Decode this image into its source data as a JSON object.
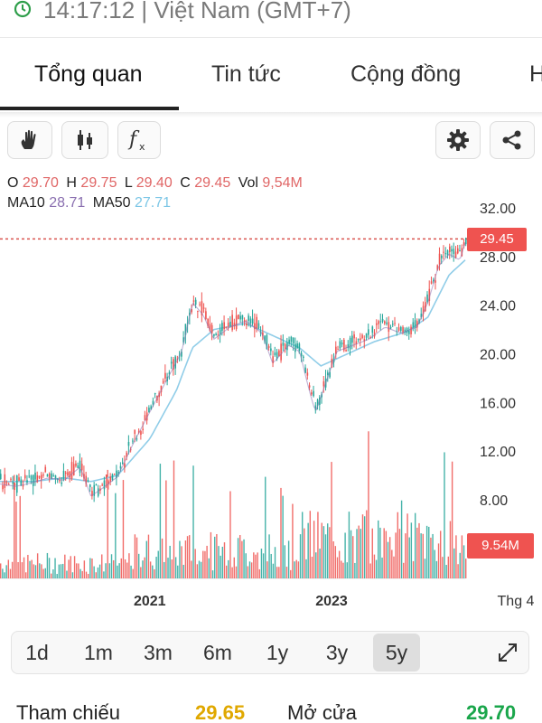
{
  "status_bar": {
    "time_text": "14:17:12 | Việt Nam (GMT+7)"
  },
  "tabs": [
    {
      "label": "Tổng quan",
      "active": true
    },
    {
      "label": "Tin tức",
      "active": false
    },
    {
      "label": "Cộng đồng",
      "active": false
    },
    {
      "label": "H",
      "active": false
    }
  ],
  "toolbar": {
    "icons": [
      "hand-icon",
      "candlestick-icon",
      "function-icon",
      "gear-icon",
      "share-icon"
    ]
  },
  "ohlc": {
    "o_label": "O",
    "o_value": "29.70",
    "h_label": "H",
    "h_value": "29.75",
    "l_label": "L",
    "l_value": "29.40",
    "c_label": "C",
    "c_value": "29.45",
    "vol_label": "Vol",
    "vol_value": "9,54M"
  },
  "ma": {
    "ma10_label": "MA10",
    "ma10_value": "28.71",
    "ma50_label": "MA50",
    "ma50_value": "27.71"
  },
  "chart_data": {
    "type": "line",
    "y_ticks": [
      "32.00",
      "28.00",
      "24.00",
      "20.00",
      "16.00",
      "12.00",
      "8.00"
    ],
    "x_ticks": [
      "2021",
      "2023",
      "Thg 4"
    ],
    "x_tick_t": [
      0.28,
      0.62,
      0.93
    ],
    "ylim": [
      8,
      32
    ],
    "current_price_label": "29.45",
    "current_price": 29.45,
    "current_volume_label": "9.54M",
    "colors": {
      "up": "#26a69a",
      "down": "#ef5350",
      "ma10": "#8a6fb0",
      "ma50": "#90cde8",
      "price_line": "#d9534f"
    },
    "price_points": [
      [
        0.0,
        9.6
      ],
      [
        0.03,
        9.4
      ],
      [
        0.06,
        9.7
      ],
      [
        0.09,
        10.1
      ],
      [
        0.12,
        9.9
      ],
      [
        0.15,
        11.0
      ],
      [
        0.17,
        8.6
      ],
      [
        0.19,
        9.2
      ],
      [
        0.22,
        10.2
      ],
      [
        0.25,
        13.0
      ],
      [
        0.28,
        15.5
      ],
      [
        0.31,
        18.0
      ],
      [
        0.34,
        20.5
      ],
      [
        0.36,
        24.5
      ],
      [
        0.38,
        23.5
      ],
      [
        0.4,
        21.5
      ],
      [
        0.43,
        22.5
      ],
      [
        0.46,
        23.0
      ],
      [
        0.49,
        22.0
      ],
      [
        0.51,
        19.5
      ],
      [
        0.54,
        21.0
      ],
      [
        0.56,
        20.5
      ],
      [
        0.58,
        17.0
      ],
      [
        0.59,
        15.5
      ],
      [
        0.61,
        18.0
      ],
      [
        0.63,
        20.5
      ],
      [
        0.66,
        21.0
      ],
      [
        0.69,
        21.5
      ],
      [
        0.72,
        22.5
      ],
      [
        0.75,
        22.0
      ],
      [
        0.78,
        22.5
      ],
      [
        0.8,
        24.5
      ],
      [
        0.82,
        27.5
      ],
      [
        0.84,
        28.5
      ],
      [
        0.86,
        28.0
      ],
      [
        0.87,
        29.45
      ]
    ],
    "ma50_points": [
      [
        0.0,
        9.5
      ],
      [
        0.06,
        9.5
      ],
      [
        0.12,
        9.8
      ],
      [
        0.17,
        9.5
      ],
      [
        0.22,
        10.0
      ],
      [
        0.28,
        13.0
      ],
      [
        0.33,
        17.0
      ],
      [
        0.36,
        20.5
      ],
      [
        0.4,
        22.0
      ],
      [
        0.46,
        22.5
      ],
      [
        0.51,
        21.5
      ],
      [
        0.56,
        20.5
      ],
      [
        0.6,
        19.0
      ],
      [
        0.64,
        19.8
      ],
      [
        0.7,
        21.0
      ],
      [
        0.76,
        21.8
      ],
      [
        0.8,
        23.0
      ],
      [
        0.84,
        26.5
      ],
      [
        0.87,
        27.71
      ]
    ]
  },
  "ranges": [
    {
      "label": "1d",
      "active": false
    },
    {
      "label": "1m",
      "active": false
    },
    {
      "label": "3m",
      "active": false
    },
    {
      "label": "6m",
      "active": false
    },
    {
      "label": "1y",
      "active": false
    },
    {
      "label": "3y",
      "active": false
    },
    {
      "label": "5y",
      "active": true
    }
  ],
  "stats": {
    "ref_label": "Tham chiếu",
    "ref_value": "29.65",
    "open_label": "Mở cửa",
    "open_value": "29.70"
  }
}
